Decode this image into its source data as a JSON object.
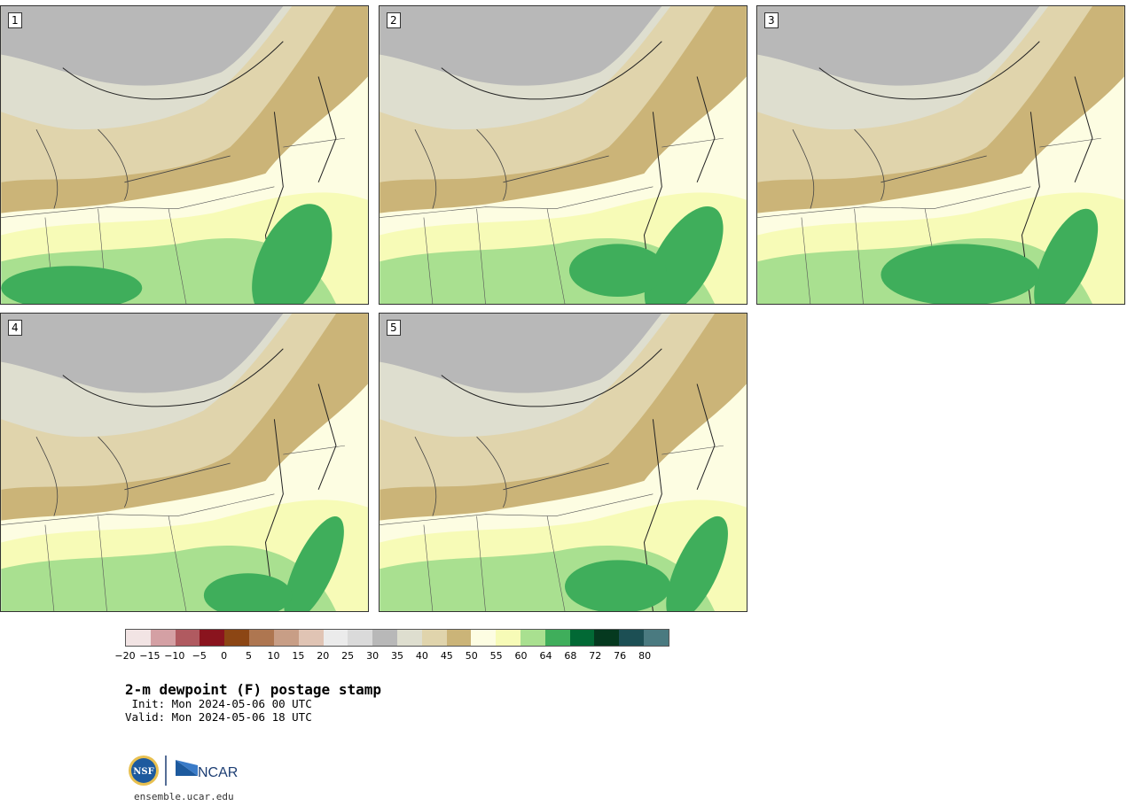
{
  "panels": [
    {
      "label": "1"
    },
    {
      "label": "2"
    },
    {
      "label": "3"
    },
    {
      "label": "4"
    },
    {
      "label": "5"
    }
  ],
  "colorbar": {
    "colors": [
      "#f2e4e4",
      "#d4a0a4",
      "#b05a60",
      "#8a141e",
      "#8c4614",
      "#ae7650",
      "#c89e86",
      "#e0c4b4",
      "#ebebeb",
      "#dadada",
      "#b8b8b8",
      "#dedecf",
      "#e0d4ac",
      "#cbb478",
      "#fdfde2",
      "#f7fbb7",
      "#a9e090",
      "#3fae5b",
      "#026935",
      "#05391f",
      "#1c4f54",
      "#4a7a80"
    ],
    "tick_labels": [
      "−20",
      "−15",
      "−10",
      "−5",
      "0",
      "5",
      "10",
      "15",
      "20",
      "25",
      "30",
      "35",
      "40",
      "45",
      "50",
      "55",
      "60",
      "64",
      "68",
      "72",
      "76",
      "80"
    ]
  },
  "title": "2-m dewpoint (F) postage stamp",
  "init_line": " Init: Mon 2024-05-06 00 UTC",
  "valid_line": "Valid: Mon 2024-05-06 18 UTC",
  "logo": {
    "nsf_text": "NSF",
    "ncar_text": "NCAR"
  },
  "site": "ensemble.ucar.edu"
}
